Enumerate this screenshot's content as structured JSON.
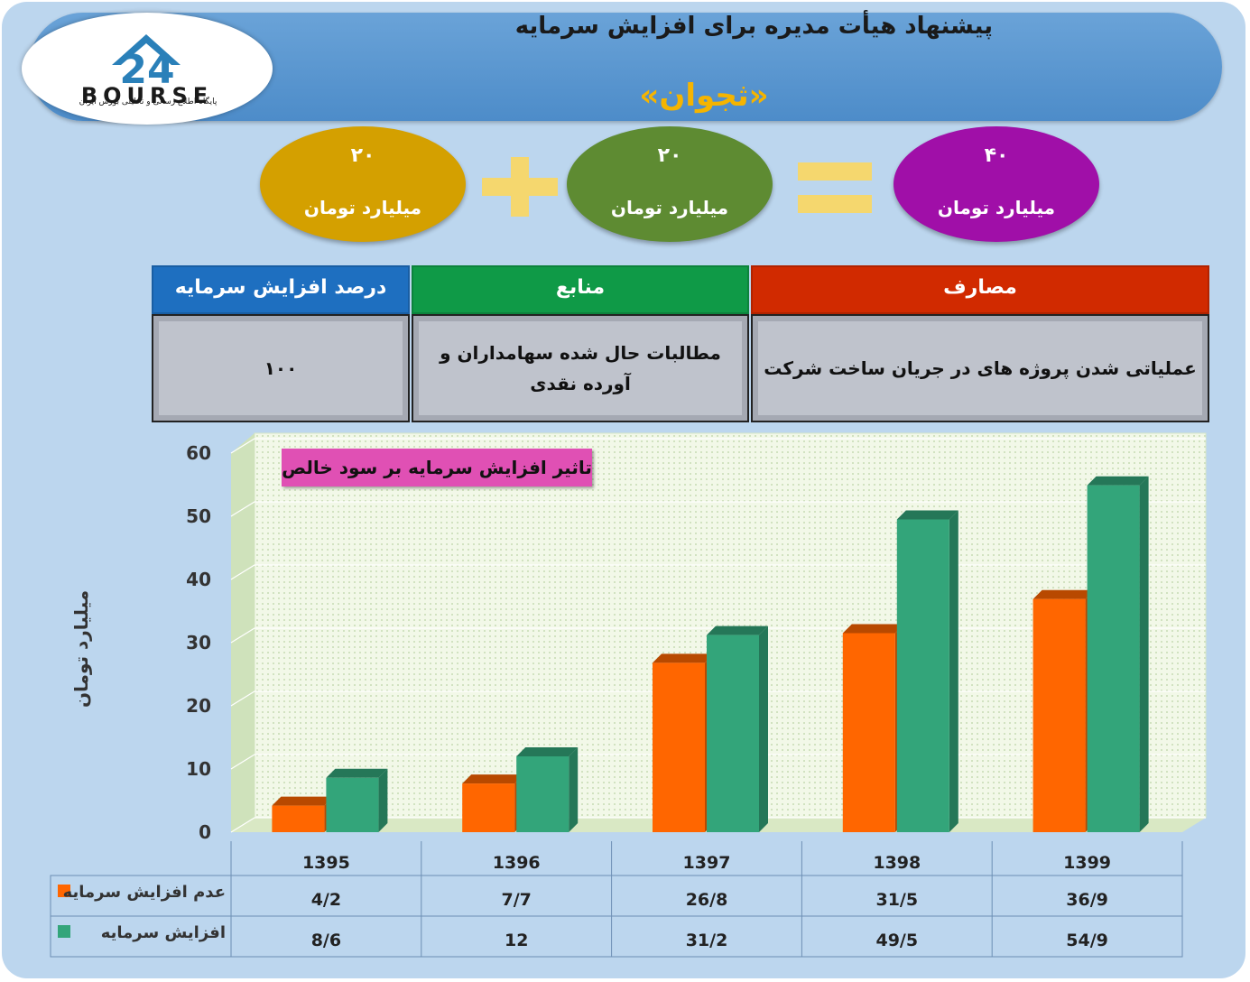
{
  "header": {
    "title": "پیشنهاد هیأت مدیره برای افزایش سرمایه",
    "company": "«ثجوان»",
    "logo_text": "BOURSE",
    "logo_number": "24",
    "logo_subtitle": "پایگاه اطلاع رسانی و تحلیلی بورس ایران"
  },
  "equation": {
    "left": {
      "value": "۲۰",
      "unit": "میلیارد تومان",
      "color": "#d4a000"
    },
    "middle": {
      "value": "۲۰",
      "unit": "میلیارد تومان",
      "color": "#5e8b32"
    },
    "right": {
      "value": "۴۰",
      "unit": "میلیارد تومان",
      "color": "#a00fa8"
    }
  },
  "info_table": {
    "headers": {
      "percent": "درصد افزایش سرمایه",
      "sources": "منابع",
      "uses": "مصارف"
    },
    "values": {
      "percent": "۱۰۰",
      "sources": "مطالبات حال شده سهامداران و آورده نقدی",
      "uses": "عملیاتی شدن پروژه های در جریان ساخت شرکت"
    },
    "colors": {
      "percent": "#1e6fc0",
      "sources": "#0f9a47",
      "uses": "#d12a00"
    }
  },
  "chart_data": {
    "type": "bar",
    "title": "تاثیر افزایش سرمایه بر سود خالص",
    "ylabel": "میلیارد تومان",
    "xlabel": "",
    "ylim": [
      0,
      60
    ],
    "yticks": [
      0,
      10,
      20,
      30,
      40,
      50,
      60
    ],
    "categories": [
      "1395",
      "1396",
      "1397",
      "1398",
      "1399"
    ],
    "series": [
      {
        "name": "عدم افزایش سرمایه",
        "values": [
          4.2,
          7.7,
          26.8,
          31.5,
          36.9
        ],
        "labels": [
          "4/2",
          "7/7",
          "26/8",
          "31/5",
          "36/9"
        ],
        "color": "#ff6600"
      },
      {
        "name": "افزایش سرمایه",
        "values": [
          8.6,
          12,
          31.2,
          49.5,
          54.9
        ],
        "labels": [
          "8/6",
          "12",
          "31/2",
          "49/5",
          "54/9"
        ],
        "color": "#33a57a"
      }
    ],
    "grid": true,
    "legend": "data-table"
  }
}
